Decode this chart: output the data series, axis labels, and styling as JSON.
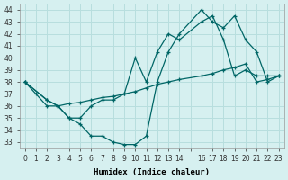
{
  "xlabel": "Humidex (Indice chaleur)",
  "ylabel": "",
  "bg_color": "#d6f0f0",
  "grid_color": "#b8dede",
  "line_color": "#006666",
  "xlim": [
    -0.5,
    23.5
  ],
  "ylim": [
    32.5,
    44.5
  ],
  "yticks": [
    33,
    34,
    35,
    36,
    37,
    38,
    39,
    40,
    41,
    42,
    43,
    44
  ],
  "xticks": [
    0,
    1,
    2,
    3,
    4,
    5,
    6,
    7,
    8,
    9,
    10,
    11,
    12,
    13,
    14,
    15,
    16,
    17,
    18,
    19,
    20,
    21,
    22,
    23
  ],
  "xtick_labels": [
    "0",
    "1",
    "2",
    "3",
    "4",
    "5",
    "6",
    "7",
    "8",
    "9",
    "10",
    "11",
    "12",
    "13",
    "14",
    "",
    "16",
    "17",
    "18",
    "19",
    "20",
    "21",
    "22",
    "23"
  ],
  "line1_x": [
    0,
    1,
    2,
    3,
    4,
    5,
    6,
    7,
    8,
    9,
    10,
    11,
    12,
    13,
    14,
    16,
    17,
    18,
    19,
    20,
    21,
    22,
    23
  ],
  "line1_y": [
    38.0,
    37.0,
    36.0,
    36.0,
    35.0,
    34.5,
    33.5,
    33.5,
    33.0,
    32.8,
    32.8,
    33.5,
    38.0,
    40.5,
    42.0,
    44.0,
    43.0,
    42.5,
    43.5,
    41.5,
    40.5,
    38.0,
    38.5
  ],
  "line2_x": [
    0,
    2,
    3,
    4,
    5,
    6,
    7,
    8,
    9,
    10,
    11,
    12,
    13,
    14,
    16,
    17,
    18,
    19,
    20,
    21,
    22,
    23
  ],
  "line2_y": [
    38.0,
    36.5,
    36.0,
    35.0,
    35.0,
    36.0,
    36.5,
    36.5,
    37.0,
    40.0,
    38.0,
    40.5,
    42.0,
    41.5,
    43.0,
    43.5,
    41.5,
    38.5,
    39.0,
    38.5,
    38.5,
    38.5
  ],
  "line3_x": [
    0,
    2,
    3,
    4,
    5,
    6,
    7,
    8,
    9,
    10,
    11,
    12,
    13,
    14,
    16,
    17,
    18,
    19,
    20,
    21,
    22,
    23
  ],
  "line3_y": [
    38.0,
    36.5,
    36.0,
    36.2,
    36.3,
    36.5,
    36.7,
    36.8,
    37.0,
    37.2,
    37.5,
    37.8,
    38.0,
    38.2,
    38.5,
    38.7,
    39.0,
    39.2,
    39.5,
    38.0,
    38.2,
    38.5
  ]
}
